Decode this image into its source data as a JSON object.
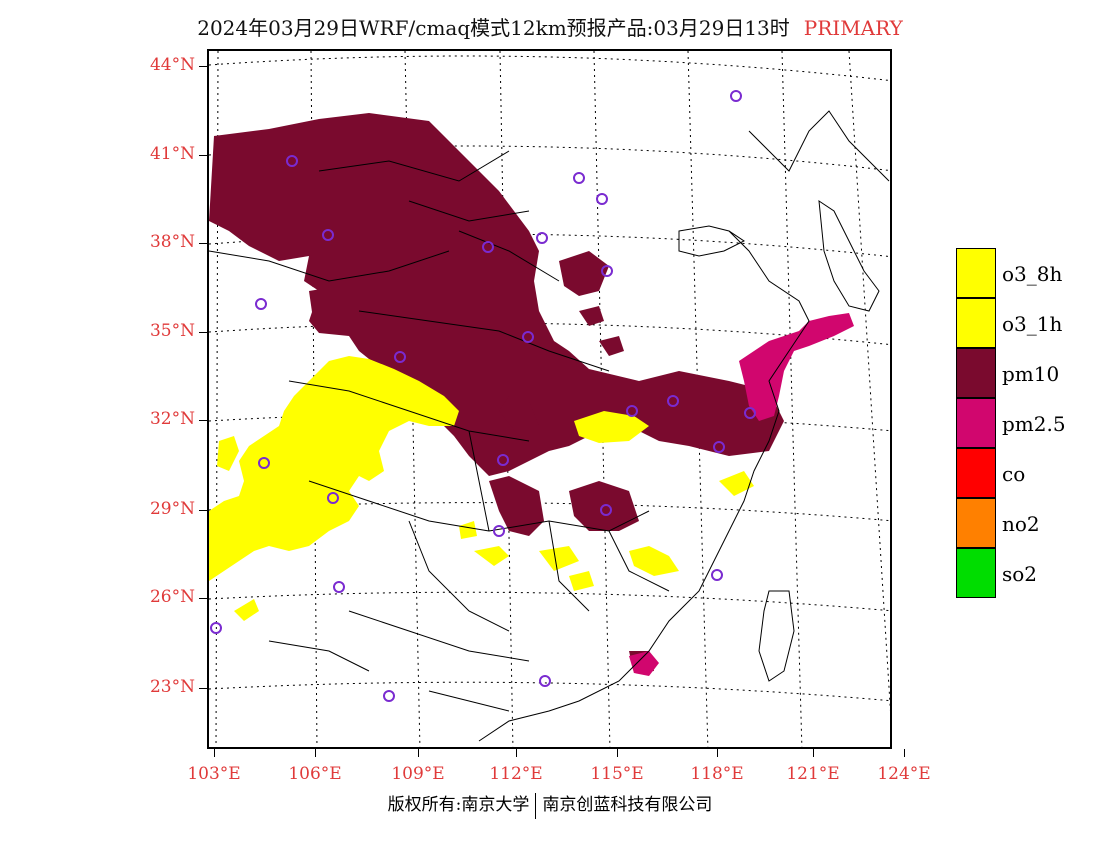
{
  "title": {
    "main": "2024年03月29日WRF/cmaq模式12km预报产品:03月29日13时",
    "tag": "PRIMARY"
  },
  "latitude_labels": [
    "44°N",
    "41°N",
    "38°N",
    "35°N",
    "32°N",
    "29°N",
    "26°N",
    "23°N"
  ],
  "longitude_labels": [
    "103°E",
    "106°E",
    "109°E",
    "112°E",
    "115°E",
    "118°E",
    "121°E",
    "124°E"
  ],
  "legend": [
    {
      "label": "o3_8h",
      "color": "#ffff00"
    },
    {
      "label": "o3_1h",
      "color": "#ffff00"
    },
    {
      "label": "pm10",
      "color": "#7a0a2e"
    },
    {
      "label": "pm2.5",
      "color": "#d1066e"
    },
    {
      "label": "co",
      "color": "#ff0000"
    },
    {
      "label": "no2",
      "color": "#ff8000"
    },
    {
      "label": "so2",
      "color": "#00dd00"
    }
  ],
  "footer": {
    "left": "版权所有:南京大学",
    "right": "南京创蓝科技有限公司"
  }
}
